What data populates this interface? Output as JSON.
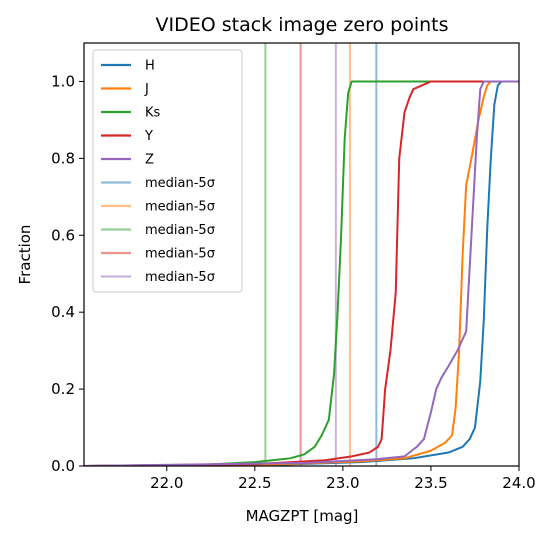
{
  "chart_data": {
    "type": "line",
    "title": "VIDEO stack image zero points",
    "xlabel": "MAGZPT [mag]",
    "ylabel": "Fraction",
    "xlim": [
      21.53,
      24.0
    ],
    "ylim": [
      0.0,
      1.1
    ],
    "xticks": [
      22.0,
      22.5,
      23.0,
      23.5,
      24.0
    ],
    "xtick_labels": [
      "22.0",
      "22.5",
      "23.0",
      "23.5",
      "24.0"
    ],
    "yticks": [
      0.0,
      0.2,
      0.4,
      0.6,
      0.8,
      1.0
    ],
    "ytick_labels": [
      "0.0",
      "0.2",
      "0.4",
      "0.6",
      "0.8",
      "1.0"
    ],
    "grid": false,
    "legend_position": "top-left",
    "series": [
      {
        "name": "H",
        "color": "#1f77b4",
        "points": [
          [
            21.53,
            0.0
          ],
          [
            22.6,
            0.003
          ],
          [
            23.1,
            0.01
          ],
          [
            23.4,
            0.02
          ],
          [
            23.6,
            0.035
          ],
          [
            23.68,
            0.05
          ],
          [
            23.72,
            0.07
          ],
          [
            23.75,
            0.1
          ],
          [
            23.78,
            0.22
          ],
          [
            23.8,
            0.38
          ],
          [
            23.82,
            0.62
          ],
          [
            23.84,
            0.8
          ],
          [
            23.86,
            0.94
          ],
          [
            23.88,
            0.99
          ],
          [
            23.9,
            1.0
          ],
          [
            24.0,
            1.0
          ]
        ]
      },
      {
        "name": "J",
        "color": "#ff7f0e",
        "points": [
          [
            21.53,
            0.0
          ],
          [
            22.6,
            0.004
          ],
          [
            23.1,
            0.012
          ],
          [
            23.35,
            0.02
          ],
          [
            23.5,
            0.04
          ],
          [
            23.58,
            0.06
          ],
          [
            23.62,
            0.08
          ],
          [
            23.64,
            0.15
          ],
          [
            23.66,
            0.3
          ],
          [
            23.68,
            0.55
          ],
          [
            23.7,
            0.73
          ],
          [
            23.73,
            0.8
          ],
          [
            23.77,
            0.9
          ],
          [
            23.8,
            0.96
          ],
          [
            23.82,
            0.99
          ],
          [
            23.84,
            1.0
          ],
          [
            24.0,
            1.0
          ]
        ]
      },
      {
        "name": "Ks",
        "color": "#2ca02c",
        "points": [
          [
            21.53,
            0.0
          ],
          [
            22.2,
            0.003
          ],
          [
            22.5,
            0.01
          ],
          [
            22.6,
            0.015
          ],
          [
            22.7,
            0.02
          ],
          [
            22.78,
            0.03
          ],
          [
            22.84,
            0.05
          ],
          [
            22.88,
            0.08
          ],
          [
            22.92,
            0.12
          ],
          [
            22.95,
            0.24
          ],
          [
            22.97,
            0.4
          ],
          [
            22.99,
            0.6
          ],
          [
            23.01,
            0.85
          ],
          [
            23.03,
            0.97
          ],
          [
            23.05,
            1.0
          ],
          [
            24.0,
            1.0
          ]
        ]
      },
      {
        "name": "Y",
        "color": "#d62728",
        "points": [
          [
            21.53,
            0.0
          ],
          [
            22.5,
            0.005
          ],
          [
            22.9,
            0.015
          ],
          [
            23.05,
            0.025
          ],
          [
            23.15,
            0.035
          ],
          [
            23.2,
            0.05
          ],
          [
            23.22,
            0.07
          ],
          [
            23.24,
            0.2
          ],
          [
            23.27,
            0.3
          ],
          [
            23.3,
            0.45
          ],
          [
            23.32,
            0.8
          ],
          [
            23.35,
            0.92
          ],
          [
            23.38,
            0.96
          ],
          [
            23.4,
            0.98
          ],
          [
            23.45,
            0.99
          ],
          [
            23.5,
            1.0
          ],
          [
            24.0,
            1.0
          ]
        ]
      },
      {
        "name": "Z",
        "color": "#9467bd",
        "points": [
          [
            21.53,
            0.0
          ],
          [
            22.8,
            0.008
          ],
          [
            23.2,
            0.018
          ],
          [
            23.35,
            0.025
          ],
          [
            23.42,
            0.05
          ],
          [
            23.46,
            0.07
          ],
          [
            23.5,
            0.14
          ],
          [
            23.53,
            0.2
          ],
          [
            23.56,
            0.23
          ],
          [
            23.6,
            0.26
          ],
          [
            23.65,
            0.3
          ],
          [
            23.7,
            0.35
          ],
          [
            23.73,
            0.6
          ],
          [
            23.76,
            0.85
          ],
          [
            23.78,
            0.98
          ],
          [
            23.8,
            1.0
          ],
          [
            24.0,
            1.0
          ]
        ]
      }
    ],
    "vlines": [
      {
        "name": "median-5σ",
        "x": 23.19,
        "color": "#1f77b4"
      },
      {
        "name": "median-5σ",
        "x": 23.04,
        "color": "#ff7f0e"
      },
      {
        "name": "median-5σ",
        "x": 22.56,
        "color": "#2ca02c"
      },
      {
        "name": "median-5σ",
        "x": 22.76,
        "color": "#d62728"
      },
      {
        "name": "median-5σ",
        "x": 22.96,
        "color": "#9467bd"
      }
    ]
  }
}
